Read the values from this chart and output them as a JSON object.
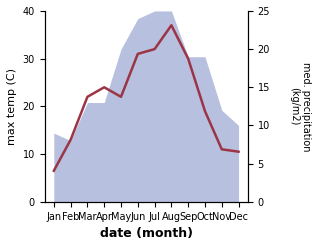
{
  "months": [
    "Jan",
    "Feb",
    "Mar",
    "Apr",
    "May",
    "Jun",
    "Jul",
    "Aug",
    "Sep",
    "Oct",
    "Nov",
    "Dec"
  ],
  "month_indices": [
    0,
    1,
    2,
    3,
    4,
    5,
    6,
    7,
    8,
    9,
    10,
    11
  ],
  "temperature": [
    6.5,
    13.0,
    22.0,
    24.0,
    22.0,
    31.0,
    32.0,
    37.0,
    30.0,
    19.0,
    11.0,
    10.5
  ],
  "precipitation": [
    9.0,
    8.0,
    13.0,
    13.0,
    20.0,
    24.0,
    25.0,
    25.0,
    19.0,
    19.0,
    12.0,
    10.0
  ],
  "temp_color": "#9b3545",
  "precip_fill_color": "#b8c0e0",
  "precip_fill_alpha": 1.0,
  "xlabel": "date (month)",
  "ylabel_left": "max temp (C)",
  "ylabel_right": "med. precipitation\n(kg/m2)",
  "ylim_left": [
    0,
    40
  ],
  "ylim_right": [
    0,
    25
  ],
  "yticks_left": [
    0,
    10,
    20,
    30,
    40
  ],
  "yticks_right": [
    0,
    5,
    10,
    15,
    20,
    25
  ],
  "line_width": 1.8,
  "bg_color": "#ffffff"
}
